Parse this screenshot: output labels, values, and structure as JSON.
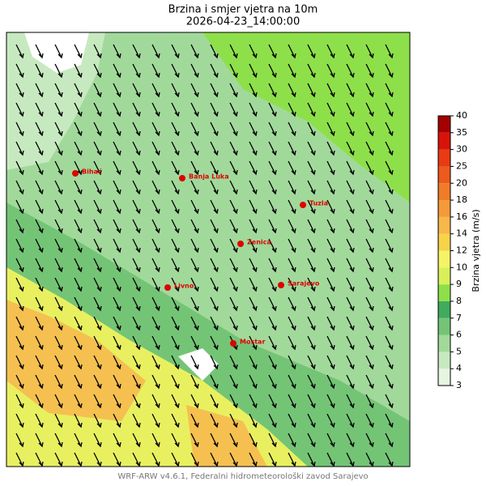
{
  "title": "Brzina i smjer vjetra na 10m",
  "subtitle": "2026-04-23_14:00:00",
  "cities": [
    "Bihać",
    "Banja Luka",
    "Tuzla",
    "Zenica",
    "Livno",
    "Sarajevo",
    "Mostar"
  ],
  "colorbar": {
    "label": "Brzina vjetra (m/s)",
    "ticks": [
      3,
      4,
      5,
      6,
      7,
      8,
      9,
      10,
      12,
      14,
      16,
      18,
      20,
      25,
      30,
      35,
      40
    ],
    "colors": [
      "#e5f5e0",
      "#c7e9c0",
      "#a1d99b",
      "#74c476",
      "#41ab5d",
      "#8ee04a",
      "#d8f05a",
      "#f4f466",
      "#f7d34a",
      "#f8b74a",
      "#f49a3a",
      "#f07c28",
      "#ed5a1d",
      "#e83b14",
      "#d8140a",
      "#a50000"
    ]
  },
  "footer": "WRF-ARW v4.6.1, Federalni hidrometeorološki zavod Sarajevo"
}
